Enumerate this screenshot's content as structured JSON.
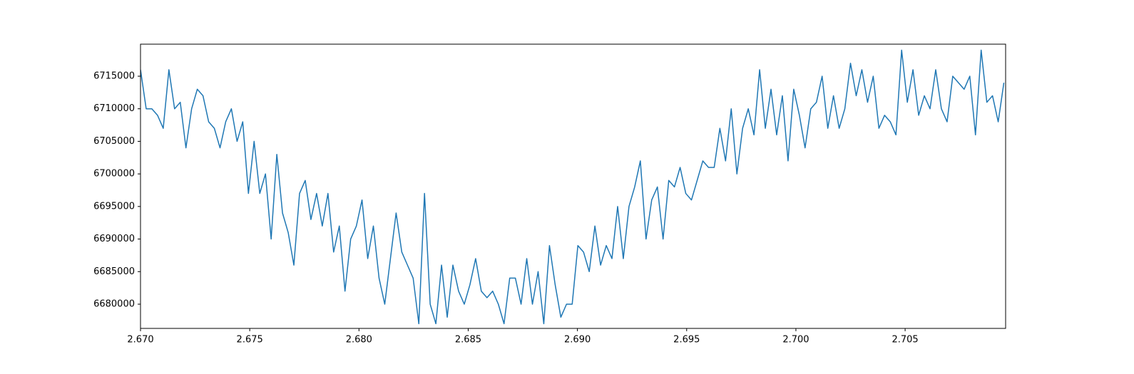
{
  "chart_data": {
    "type": "line",
    "x": [
      2.67,
      2.67026,
      2.67052,
      2.67078,
      2.67104,
      2.6713,
      2.67156,
      2.67182,
      2.67208,
      2.67234,
      2.6726,
      2.67286,
      2.67312,
      2.67338,
      2.67364,
      2.6739,
      2.67416,
      2.67442,
      2.67468,
      2.67494,
      2.6752,
      2.67546,
      2.67572,
      2.67598,
      2.67624,
      2.6765,
      2.67676,
      2.67702,
      2.67728,
      2.67754,
      2.6778,
      2.67806,
      2.67832,
      2.67858,
      2.67884,
      2.6791,
      2.67936,
      2.67962,
      2.67988,
      2.68014,
      2.6804,
      2.68066,
      2.68092,
      2.68118,
      2.68144,
      2.6817,
      2.68196,
      2.68222,
      2.68248,
      2.68274,
      2.683,
      2.68326,
      2.68352,
      2.68378,
      2.68404,
      2.6843,
      2.68456,
      2.68482,
      2.68508,
      2.68534,
      2.6856,
      2.68586,
      2.68612,
      2.68638,
      2.68664,
      2.6869,
      2.68716,
      2.68742,
      2.68768,
      2.68794,
      2.6882,
      2.68846,
      2.68872,
      2.68898,
      2.68924,
      2.6895,
      2.68976,
      2.69002,
      2.69028,
      2.69054,
      2.6908,
      2.69106,
      2.69132,
      2.69158,
      2.69184,
      2.6921,
      2.69236,
      2.69262,
      2.69288,
      2.69314,
      2.6934,
      2.69366,
      2.69392,
      2.69418,
      2.69444,
      2.6947,
      2.69496,
      2.69522,
      2.69548,
      2.69574,
      2.696,
      2.69626,
      2.69652,
      2.69678,
      2.69704,
      2.6973,
      2.69756,
      2.69782,
      2.69808,
      2.69834,
      2.6986,
      2.69886,
      2.69912,
      2.69938,
      2.69964,
      2.6999,
      2.70016,
      2.70042,
      2.70068,
      2.70094,
      2.7012,
      2.70146,
      2.70172,
      2.70198,
      2.70224,
      2.7025,
      2.70276,
      2.70302,
      2.70328,
      2.70354,
      2.7038,
      2.70406,
      2.70432,
      2.70458,
      2.70484,
      2.7051,
      2.70536,
      2.70562,
      2.70588,
      2.70614,
      2.7064,
      2.70666,
      2.70692,
      2.70718,
      2.70744,
      2.7077,
      2.70796,
      2.70822,
      2.70848,
      2.70874,
      2.709,
      2.70926,
      2.70952
    ],
    "series": [
      {
        "color": "#1f77b4",
        "values": [
          6716000,
          6710000,
          6710000,
          6709000,
          6707000,
          6716000,
          6710000,
          6711000,
          6704000,
          6710000,
          6713000,
          6712000,
          6708000,
          6707000,
          6704000,
          6708000,
          6710000,
          6705000,
          6708000,
          6697000,
          6705000,
          6697000,
          6700000,
          6690000,
          6703000,
          6694000,
          6691000,
          6686000,
          6697000,
          6699000,
          6693000,
          6697000,
          6692000,
          6697000,
          6688000,
          6692000,
          6682000,
          6690000,
          6692000,
          6696000,
          6687000,
          6692000,
          6684000,
          6680000,
          6687000,
          6694000,
          6688000,
          6686000,
          6684000,
          6677000,
          6697000,
          6680000,
          6677000,
          6686000,
          6678000,
          6686000,
          6682000,
          6680000,
          6683000,
          6687000,
          6682000,
          6681000,
          6682000,
          6680000,
          6677000,
          6684000,
          6684000,
          6680000,
          6687000,
          6680000,
          6685000,
          6677000,
          6689000,
          6683000,
          6678000,
          6680000,
          6680000,
          6689000,
          6688000,
          6685000,
          6692000,
          6686000,
          6689000,
          6687000,
          6695000,
          6687000,
          6695000,
          6698000,
          6702000,
          6690000,
          6696000,
          6698000,
          6690000,
          6699000,
          6698000,
          6701000,
          6697000,
          6696000,
          6699000,
          6702000,
          6701000,
          6701000,
          6707000,
          6702000,
          6710000,
          6700000,
          6707000,
          6710000,
          6706000,
          6716000,
          6707000,
          6713000,
          6706000,
          6712000,
          6702000,
          6713000,
          6709000,
          6704000,
          6710000,
          6711000,
          6715000,
          6707000,
          6712000,
          6707000,
          6710000,
          6717000,
          6712000,
          6716000,
          6711000,
          6715000,
          6707000,
          6709000,
          6708000,
          6706000,
          6719000,
          6711000,
          6716000,
          6709000,
          6712000,
          6710000,
          6716000,
          6710000,
          6708000,
          6715000,
          6714000,
          6713000,
          6715000,
          6706000,
          6719000,
          6711000,
          6712000,
          6708000,
          6714000
        ]
      }
    ],
    "xlim": [
      2.67,
      2.7096
    ],
    "xticks": [
      {
        "value": 2.67,
        "label": "2.670"
      },
      2.675,
      {
        "value": 2.68,
        "label": "2.680"
      },
      2.685,
      {
        "value": 2.69,
        "label": "2.690"
      },
      2.695,
      {
        "value": 2.7,
        "label": "2.700"
      },
      2.705
    ],
    "ylim": [
      6676280,
      6719920
    ],
    "yticks": [
      6680000,
      6685000,
      6690000,
      6695000,
      6700000,
      6705000,
      6710000,
      6715000
    ]
  }
}
